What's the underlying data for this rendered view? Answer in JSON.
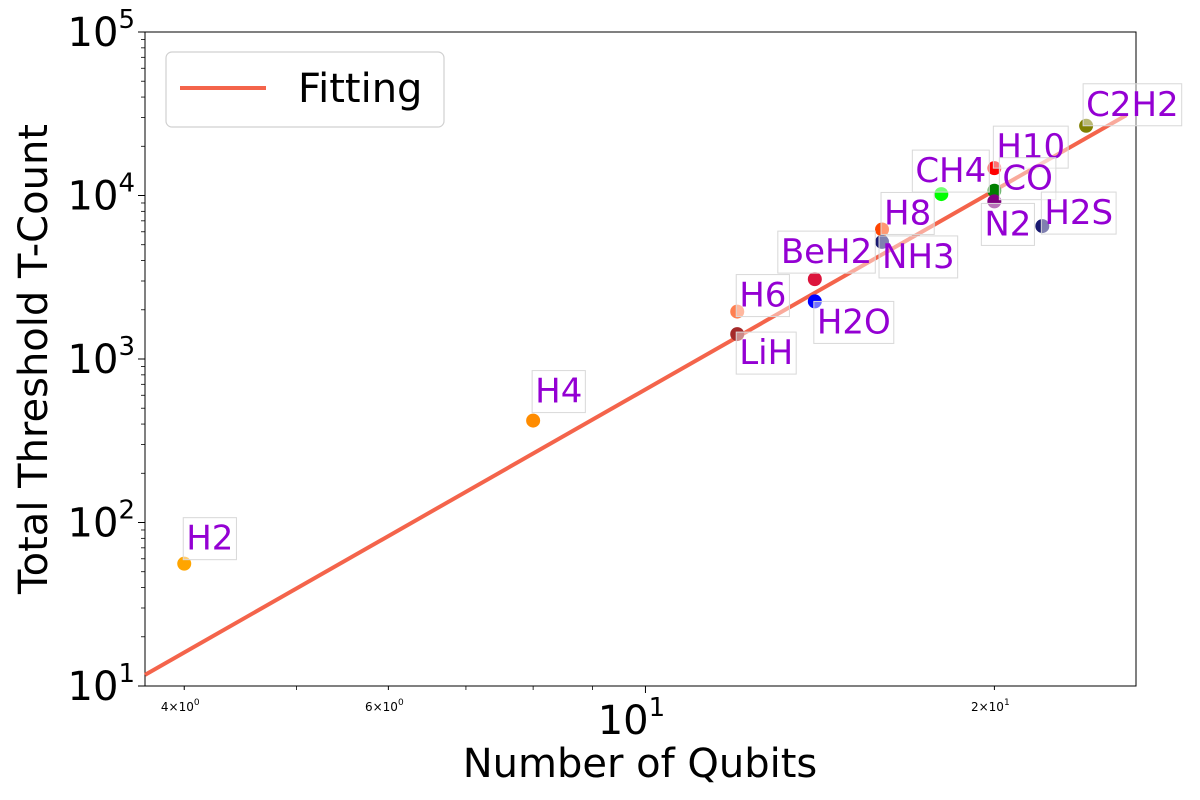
{
  "chart_data": {
    "type": "scatter",
    "title": "",
    "xlabel": "Number of Qubits",
    "ylabel": "Total Threshold T-Count",
    "xscale": "log",
    "yscale": "log",
    "xlim": [
      3.7,
      26.5
    ],
    "ylim": [
      10,
      100000
    ],
    "grid": false,
    "legend": {
      "placement": "top-left",
      "entries": [
        "Fitting"
      ]
    },
    "x_ticks": [
      {
        "value": 4,
        "base": "4",
        "exp": "0",
        "mult": "×10"
      },
      {
        "value": 6,
        "base": "6",
        "exp": "0",
        "mult": "×10"
      },
      {
        "value": 10,
        "base": "10",
        "exp": "1",
        "mult": ""
      },
      {
        "value": 20,
        "base": "2",
        "exp": "1",
        "mult": "×10"
      }
    ],
    "y_ticks": [
      {
        "value": 10,
        "base": "10",
        "exp": "1"
      },
      {
        "value": 100,
        "base": "10",
        "exp": "2"
      },
      {
        "value": 1000,
        "base": "10",
        "exp": "3"
      },
      {
        "value": 10000,
        "base": "10",
        "exp": "4"
      },
      {
        "value": 100000,
        "base": "10",
        "exp": "5"
      }
    ],
    "fit": {
      "name": "Fitting",
      "color": "#f4644b",
      "x": [
        3.7,
        26.0
      ],
      "y": [
        11.7,
        31000
      ]
    },
    "points": [
      {
        "label": "H2",
        "x": 4,
        "y": 56,
        "color": "#ffa500"
      },
      {
        "label": "H4",
        "x": 8,
        "y": 420,
        "color": "#ff8c00"
      },
      {
        "label": "H6",
        "x": 12,
        "y": 1950,
        "color": "#ff7f50"
      },
      {
        "label": "LiH",
        "x": 12,
        "y": 1420,
        "color": "#a52a2a"
      },
      {
        "label": "BeH2",
        "x": 14,
        "y": 3080,
        "color": "#dc143c"
      },
      {
        "label": "H2O",
        "x": 14,
        "y": 2250,
        "color": "#0000ff"
      },
      {
        "label": "H8",
        "x": 16,
        "y": 6200,
        "color": "#ff4500"
      },
      {
        "label": "NH3",
        "x": 16,
        "y": 5200,
        "color": "#191970"
      },
      {
        "label": "CH4",
        "x": 18,
        "y": 10200,
        "color": "#00ff00"
      },
      {
        "label": "H10",
        "x": 20,
        "y": 14700,
        "color": "#ff0000"
      },
      {
        "label": "CO",
        "x": 20,
        "y": 10700,
        "color": "#008000"
      },
      {
        "label": "N2",
        "x": 20,
        "y": 9200,
        "color": "#800080"
      },
      {
        "label": "H2S",
        "x": 22,
        "y": 6500,
        "color": "#191970"
      },
      {
        "label": "C2H2",
        "x": 24,
        "y": 26700,
        "color": "#808000"
      }
    ],
    "label_color": "#9400d3"
  }
}
